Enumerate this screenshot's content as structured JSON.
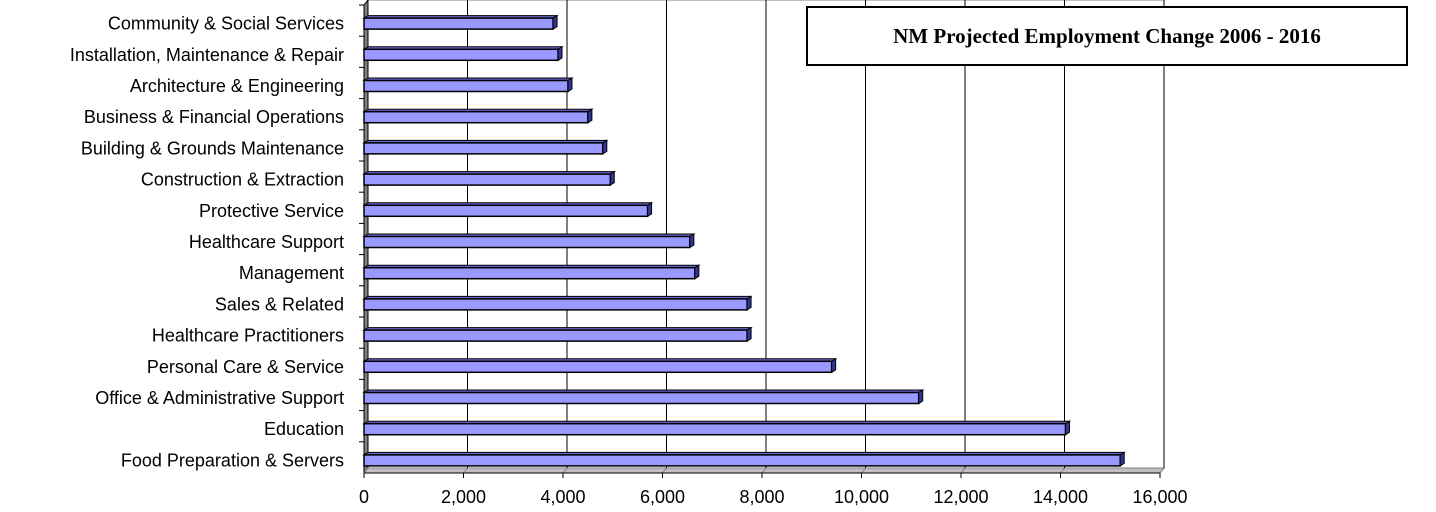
{
  "chart_data": {
    "type": "bar",
    "orientation": "horizontal",
    "title": "NM Projected Employment Change 2006 - 2016",
    "categories": [
      "Community & Social Services",
      "Installation, Maintenance & Repair",
      "Architecture & Engineering",
      "Business & Financial Operations",
      "Building & Grounds Maintenance",
      "Construction & Extraction",
      "Protective Service",
      "Healthcare Support",
      "Management",
      "Sales & Related",
      "Healthcare Practitioners",
      "Personal Care & Service",
      "Office & Administrative Support",
      "Education",
      "Food Preparation & Servers"
    ],
    "values": [
      3800,
      3900,
      4100,
      4500,
      4800,
      4950,
      5700,
      6550,
      6650,
      7700,
      7700,
      9400,
      11150,
      14100,
      15200
    ],
    "xlim": [
      0,
      16000
    ],
    "xticks": [
      0,
      2000,
      4000,
      6000,
      8000,
      10000,
      12000,
      14000,
      16000
    ],
    "xtick_labels": [
      "0",
      "2,000",
      "4,000",
      "6,000",
      "8,000",
      "10,000",
      "12,000",
      "14,000",
      "16,000"
    ],
    "grid": true,
    "bar_color": "#9999ff"
  }
}
